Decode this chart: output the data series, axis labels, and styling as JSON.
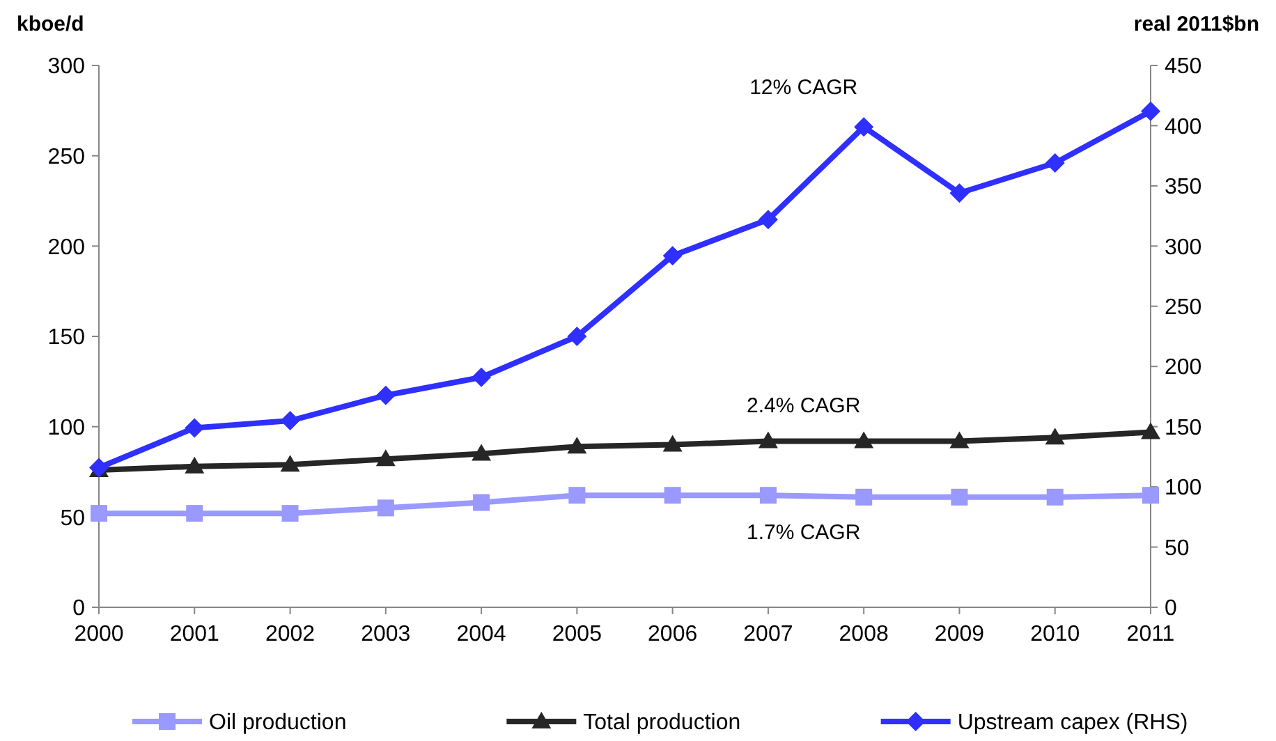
{
  "chart_data": {
    "type": "line",
    "ylabel": "kboe/d",
    "y2label": "real 2011$bn",
    "x": [
      2000,
      2001,
      2002,
      2003,
      2004,
      2005,
      2006,
      2007,
      2008,
      2009,
      2010,
      2011
    ],
    "xlim": [
      2000,
      2011
    ],
    "xticks": [
      2000,
      2001,
      2002,
      2003,
      2004,
      2005,
      2006,
      2007,
      2008,
      2009,
      2010,
      2011
    ],
    "ylim": [
      0,
      300
    ],
    "yticks": [
      0,
      50,
      100,
      150,
      200,
      250,
      300
    ],
    "y2lim": [
      0,
      450
    ],
    "y2ticks": [
      0,
      50,
      100,
      150,
      200,
      250,
      300,
      350,
      400,
      450
    ],
    "legend": "bottom",
    "grid": false,
    "series": [
      {
        "name": "Oil production",
        "color": "#9999ff",
        "marker": "square",
        "values": [
          52,
          52,
          52,
          55,
          58,
          62,
          62,
          62,
          61,
          61,
          61,
          62
        ]
      },
      {
        "name": "Total production",
        "color": "#262626",
        "marker": "triangle",
        "values": [
          76,
          78,
          79,
          82,
          85,
          89,
          90,
          92,
          92,
          92,
          94,
          97
        ]
      },
      {
        "name": "Upstream capex (RHS)",
        "color": "#2f2fff",
        "marker": "diamond",
        "axis": "y2",
        "values": [
          116,
          149,
          155,
          176,
          191,
          225,
          292,
          322,
          399,
          344,
          369,
          412
        ]
      }
    ],
    "annotations": [
      "12% CAGR",
      "2.4% CAGR",
      "1.7% CAGR"
    ]
  }
}
